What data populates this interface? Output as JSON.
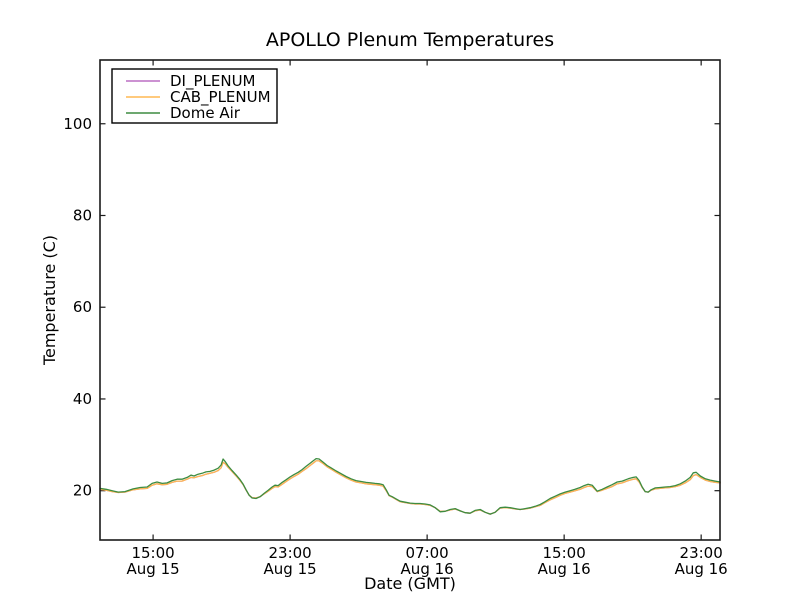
{
  "figure": {
    "background": "#ffffff",
    "spine_color": "#1a1a1a"
  },
  "chart_data": {
    "type": "line",
    "title": "APOLLO Plenum Temperatures",
    "xlabel": "Date (GMT)",
    "ylabel": "Temperature (C)",
    "grid": false,
    "legend_position": "upper left",
    "x_unit": "hours since Aug 15 00:00 GMT",
    "xlim": [
      11.9,
      48.1
    ],
    "ylim": [
      9.25,
      113.9
    ],
    "y_ticks": [
      20,
      40,
      60,
      80,
      100
    ],
    "x_ticks": [
      {
        "hour": 15,
        "line1": "15:00",
        "line2": "Aug 15"
      },
      {
        "hour": 23,
        "line1": "23:00",
        "line2": "Aug 15"
      },
      {
        "hour": 31,
        "line1": "07:00",
        "line2": "Aug 16"
      },
      {
        "hour": 39,
        "line1": "15:00",
        "line2": "Aug 16"
      },
      {
        "hour": 47,
        "line1": "23:00",
        "line2": "Aug 16"
      }
    ],
    "x": [
      11.9,
      12.26,
      12.61,
      12.96,
      13.36,
      13.83,
      14.24,
      14.65,
      14.94,
      15.23,
      15.53,
      15.82,
      16.11,
      16.4,
      16.69,
      16.99,
      17.22,
      17.39,
      17.63,
      17.86,
      18.09,
      18.33,
      18.56,
      18.8,
      18.97,
      19.09,
      19.2,
      19.38,
      19.61,
      19.85,
      20.08,
      20.26,
      20.43,
      20.61,
      20.78,
      21.01,
      21.25,
      21.48,
      21.72,
      21.95,
      22.12,
      22.3,
      22.53,
      22.77,
      23.0,
      23.23,
      23.47,
      23.7,
      23.93,
      24.17,
      24.34,
      24.52,
      24.69,
      24.93,
      25.16,
      25.39,
      25.69,
      25.98,
      26.27,
      26.56,
      26.85,
      27.15,
      27.44,
      27.73,
      27.96,
      28.2,
      28.43,
      28.61,
      28.78,
      28.96,
      29.19,
      29.42,
      29.72,
      30.01,
      30.3,
      30.59,
      30.88,
      31.18,
      31.47,
      31.76,
      32.05,
      32.34,
      32.64,
      32.93,
      33.22,
      33.51,
      33.8,
      34.1,
      34.39,
      34.68,
      34.97,
      35.26,
      35.56,
      35.85,
      36.14,
      36.43,
      36.72,
      37.02,
      37.31,
      37.6,
      37.89,
      38.18,
      38.48,
      38.77,
      39.06,
      39.35,
      39.64,
      39.94,
      40.17,
      40.4,
      40.64,
      40.93,
      41.22,
      41.51,
      41.8,
      42.1,
      42.39,
      42.74,
      43.03,
      43.21,
      43.38,
      43.56,
      43.73,
      43.91,
      44.08,
      44.32,
      44.61,
      44.9,
      45.19,
      45.49,
      45.78,
      46.07,
      46.36,
      46.54,
      46.71,
      46.95,
      47.24,
      47.53,
      47.82,
      48.11
    ],
    "series": [
      {
        "name": "DI_PLENUM",
        "color": "#bc6ec4",
        "values": [
          20.3,
          20.1,
          19.8,
          19.6,
          19.7,
          20.2,
          20.4,
          20.5,
          21.2,
          21.5,
          21.3,
          21.4,
          21.8,
          22.1,
          22.1,
          22.5,
          22.9,
          22.8,
          23.1,
          23.3,
          23.6,
          23.8,
          24.0,
          24.4,
          25.0,
          26.2,
          25.9,
          25.1,
          24.2,
          23.2,
          22.2,
          21.3,
          20.1,
          19.0,
          18.5,
          18.4,
          18.7,
          19.3,
          19.9,
          20.5,
          20.9,
          20.8,
          21.4,
          22.0,
          22.6,
          23.1,
          23.6,
          24.2,
          24.8,
          25.5,
          26.0,
          26.5,
          26.5,
          25.9,
          25.2,
          24.7,
          24.0,
          23.4,
          22.8,
          22.3,
          21.9,
          21.7,
          21.5,
          21.4,
          21.3,
          21.2,
          21.0,
          20.0,
          18.9,
          18.6,
          18.1,
          17.6,
          17.4,
          17.2,
          17.1,
          17.1,
          17.0,
          16.8,
          16.3,
          15.5,
          15.5,
          15.8,
          16.0,
          15.6,
          15.2,
          15.1,
          15.6,
          15.8,
          15.3,
          14.9,
          15.3,
          16.2,
          16.3,
          16.2,
          16.0,
          15.9,
          16.0,
          16.2,
          16.5,
          16.8,
          17.4,
          18.0,
          18.5,
          19.0,
          19.4,
          19.7,
          20.0,
          20.3,
          20.7,
          21.0,
          20.9,
          19.8,
          20.1,
          20.5,
          20.9,
          21.5,
          21.7,
          22.2,
          22.5,
          22.6,
          21.9,
          20.7,
          19.8,
          19.7,
          20.1,
          20.4,
          20.5,
          20.6,
          20.7,
          20.9,
          21.2,
          21.7,
          22.4,
          23.3,
          23.5,
          22.9,
          22.3,
          22.0,
          21.8,
          21.7
        ]
      },
      {
        "name": "CAB_PLENUM",
        "color": "#ffb852",
        "values": [
          20.3,
          20.1,
          19.8,
          19.6,
          19.7,
          20.2,
          20.4,
          20.5,
          21.2,
          21.5,
          21.3,
          21.4,
          21.8,
          22.1,
          22.1,
          22.5,
          22.9,
          22.8,
          23.1,
          23.3,
          23.6,
          23.8,
          24.0,
          24.4,
          25.0,
          26.2,
          25.9,
          25.1,
          24.2,
          23.2,
          22.2,
          21.3,
          20.1,
          19.0,
          18.5,
          18.4,
          18.7,
          19.3,
          19.9,
          20.5,
          20.9,
          20.8,
          21.4,
          22.0,
          22.6,
          23.1,
          23.6,
          24.2,
          24.8,
          25.5,
          26.0,
          26.5,
          26.5,
          25.9,
          25.2,
          24.7,
          24.0,
          23.4,
          22.8,
          22.3,
          21.9,
          21.7,
          21.5,
          21.4,
          21.3,
          21.2,
          21.0,
          20.0,
          18.9,
          18.6,
          18.1,
          17.6,
          17.4,
          17.2,
          17.1,
          17.1,
          17.0,
          16.8,
          16.3,
          15.5,
          15.5,
          15.8,
          16.0,
          15.6,
          15.2,
          15.1,
          15.6,
          15.8,
          15.3,
          14.9,
          15.3,
          16.2,
          16.3,
          16.2,
          16.0,
          15.9,
          16.0,
          16.2,
          16.5,
          16.8,
          17.4,
          18.0,
          18.5,
          19.0,
          19.4,
          19.7,
          20.0,
          20.3,
          20.7,
          21.0,
          20.9,
          19.8,
          20.1,
          20.5,
          20.9,
          21.5,
          21.7,
          22.2,
          22.5,
          22.6,
          21.9,
          20.7,
          19.8,
          19.7,
          20.1,
          20.4,
          20.5,
          20.6,
          20.7,
          20.9,
          21.2,
          21.7,
          22.4,
          23.3,
          23.5,
          22.9,
          22.3,
          22.0,
          21.8,
          21.7
        ]
      },
      {
        "name": "Dome Air",
        "color": "#3d8c40",
        "values": [
          20.5,
          20.3,
          20.0,
          19.7,
          19.8,
          20.4,
          20.7,
          20.8,
          21.6,
          21.9,
          21.6,
          21.7,
          22.2,
          22.5,
          22.5,
          22.9,
          23.4,
          23.2,
          23.6,
          23.8,
          24.1,
          24.2,
          24.5,
          24.9,
          25.6,
          26.9,
          26.4,
          25.4,
          24.4,
          23.4,
          22.4,
          21.4,
          20.2,
          19.0,
          18.4,
          18.3,
          18.7,
          19.4,
          20.1,
          20.8,
          21.2,
          21.1,
          21.8,
          22.4,
          23.0,
          23.5,
          24.0,
          24.6,
          25.3,
          26.0,
          26.5,
          27.0,
          26.9,
          26.2,
          25.5,
          25.0,
          24.3,
          23.7,
          23.1,
          22.6,
          22.2,
          22.0,
          21.8,
          21.7,
          21.6,
          21.5,
          21.3,
          20.2,
          19.0,
          18.7,
          18.2,
          17.7,
          17.5,
          17.3,
          17.2,
          17.2,
          17.1,
          16.9,
          16.3,
          15.4,
          15.5,
          15.9,
          16.1,
          15.6,
          15.2,
          15.1,
          15.7,
          15.9,
          15.3,
          14.9,
          15.3,
          16.3,
          16.4,
          16.3,
          16.1,
          15.9,
          16.1,
          16.3,
          16.6,
          17.0,
          17.6,
          18.3,
          18.8,
          19.3,
          19.7,
          20.0,
          20.3,
          20.7,
          21.1,
          21.4,
          21.2,
          19.9,
          20.3,
          20.8,
          21.3,
          21.9,
          22.1,
          22.6,
          22.9,
          23.0,
          22.2,
          20.8,
          19.8,
          19.7,
          20.2,
          20.6,
          20.7,
          20.8,
          20.9,
          21.1,
          21.5,
          22.1,
          22.9,
          23.9,
          24.0,
          23.2,
          22.6,
          22.3,
          22.1,
          21.9
        ]
      }
    ]
  }
}
